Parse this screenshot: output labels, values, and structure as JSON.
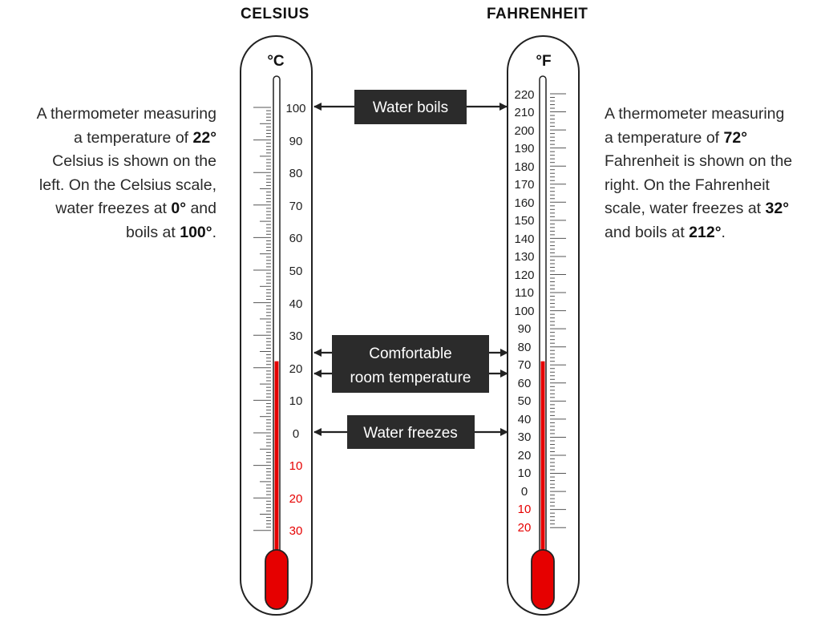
{
  "celsius": {
    "title": "CELSIUS",
    "unit": "°C",
    "reading": 22,
    "scale_min": -30,
    "scale_max": 100,
    "labels": [
      "100",
      "90",
      "80",
      "70",
      "60",
      "50",
      "40",
      "30",
      "20",
      "10",
      "0",
      "10",
      "20",
      "30"
    ],
    "description": {
      "l1": "A thermometer measuring",
      "l2a": "a temperature of ",
      "l2b": "22°",
      "l3": "Celsius is shown on the",
      "l4": "left. On the Celsius scale,",
      "l5a": "water freezes at ",
      "l5b": "0°",
      "l5c": " and",
      "l6a": "boils at ",
      "l6b": "100°",
      "l6c": "."
    }
  },
  "fahrenheit": {
    "title": "FAHRENHEIT",
    "unit": "°F",
    "reading": 72,
    "scale_min": -20,
    "scale_max": 220,
    "labels": [
      "220",
      "210",
      "200",
      "190",
      "180",
      "170",
      "160",
      "150",
      "140",
      "130",
      "120",
      "110",
      "100",
      "90",
      "80",
      "70",
      "60",
      "50",
      "40",
      "30",
      "20",
      "10",
      "0",
      "10",
      "20"
    ],
    "description": {
      "l1": "A thermometer measuring",
      "l2a": "a temperature of ",
      "l2b": "72°",
      "l3": "Fahrenheit is shown on the",
      "l4": "right. On the Fahrenheit",
      "l5a": "scale, water freezes at ",
      "l5b": "32°",
      "l6a": "and boils at ",
      "l6b": "212°",
      "l6c": "."
    }
  },
  "callouts": {
    "water_boils": "Water boils",
    "comfortable_1": "Comfortable",
    "comfortable_2": "room temperature",
    "water_freezes": "Water freezes"
  },
  "colors": {
    "mercury": "#e60000",
    "negative_label": "#e60000",
    "callout_bg": "#2b2b2b",
    "callout_text": "#ffffff",
    "outline": "#222222"
  }
}
